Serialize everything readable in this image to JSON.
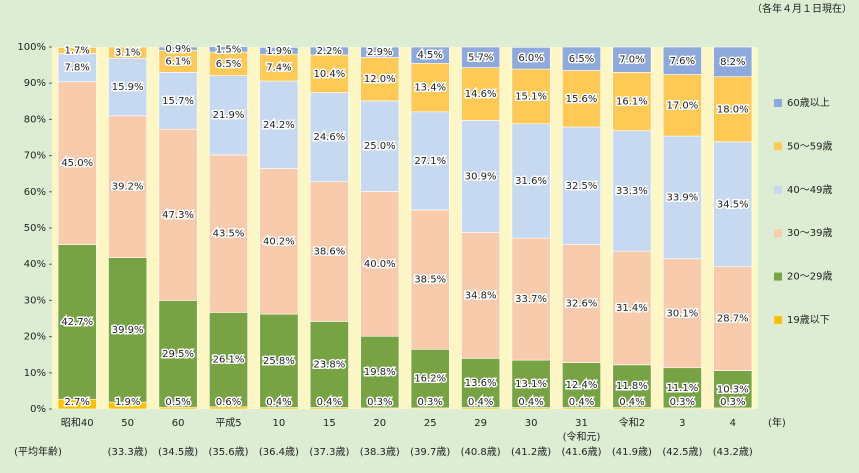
{
  "chart_data": {
    "type": "stacked_bar",
    "note": "（各年４月１日現在）",
    "categories": [
      "昭和40",
      "50",
      "60",
      "平成5",
      "10",
      "15",
      "20",
      "25",
      "29",
      "30",
      "31",
      "令和2",
      "3",
      "4"
    ],
    "x_sublabels": [
      null,
      null,
      null,
      null,
      null,
      null,
      null,
      null,
      null,
      null,
      "(令和元)",
      null,
      null,
      null
    ],
    "x_unit": "(年)",
    "average_age_label": "(平均年齢)",
    "average_ages": [
      null,
      "(33.3歳)",
      "(34.5歳)",
      "(35.6歳)",
      "(36.4歳)",
      "(37.3歳)",
      "(38.3歳)",
      "(39.7歳)",
      "(40.8歳)",
      "(41.2歳)",
      "(41.6歳)",
      "(41.9歳)",
      "(42.5歳)",
      "(43.2歳)"
    ],
    "series": [
      {
        "name": "19歳以下",
        "color": "#ffc000",
        "values": [
          2.7,
          1.9,
          0.5,
          0.6,
          0.4,
          0.4,
          0.3,
          0.3,
          0.4,
          0.4,
          0.4,
          0.4,
          0.3,
          0.3
        ],
        "value_labels": [
          "2.7%",
          "1.9%",
          "0.5%",
          "0.6%",
          "0.4%",
          "0.4%",
          "0.3%",
          "0.3%",
          "0.4%",
          "0.4%",
          "0.4%",
          "0.4%",
          "0.3%",
          "0.3%"
        ]
      },
      {
        "name": "20～29歳",
        "color": "#77a345",
        "values": [
          42.7,
          39.9,
          29.5,
          26.1,
          25.8,
          23.8,
          19.8,
          16.2,
          13.6,
          13.1,
          12.4,
          11.8,
          11.1,
          10.3
        ],
        "value_labels": [
          "42.7%",
          "39.9%",
          "29.5%",
          "26.1%",
          "25.8%",
          "23.8%",
          "19.8%",
          "16.2%",
          "13.6%",
          "13.1%",
          "12.4%",
          "11.8%",
          "11.1%",
          "10.3%"
        ]
      },
      {
        "name": "30～39歳",
        "color": "#f8cbad",
        "values": [
          45.0,
          39.2,
          47.3,
          43.5,
          40.2,
          38.6,
          40.0,
          38.5,
          34.8,
          33.7,
          32.6,
          31.4,
          30.1,
          28.7
        ],
        "value_labels": [
          "45.0%",
          "39.2%",
          "47.3%",
          "43.5%",
          "40.2%",
          "38.6%",
          "40.0%",
          "38.5%",
          "34.8%",
          "33.7%",
          "32.6%",
          "31.4%",
          "30.1%",
          "28.7%"
        ]
      },
      {
        "name": "40～49歳",
        "color": "#c6d9f0",
        "values": [
          7.8,
          15.9,
          15.7,
          21.9,
          24.2,
          24.6,
          25.0,
          27.1,
          30.9,
          31.6,
          32.5,
          33.3,
          33.9,
          34.5
        ],
        "value_labels": [
          "7.8%",
          "15.9%",
          "15.7%",
          "21.9%",
          "24.2%",
          "24.6%",
          "25.0%",
          "27.1%",
          "30.9%",
          "31.6%",
          "32.5%",
          "33.3%",
          "33.9%",
          "34.5%"
        ]
      },
      {
        "name": "50～59歳",
        "color": "#ffc955",
        "values": [
          1.7,
          3.1,
          6.1,
          6.5,
          7.4,
          10.4,
          12.0,
          13.4,
          14.6,
          15.1,
          15.6,
          16.1,
          17.0,
          18.0
        ],
        "value_labels": [
          "1.7%",
          "3.1%",
          "6.1%",
          "6.5%",
          "7.4%",
          "10.4%",
          "12.0%",
          "13.4%",
          "14.6%",
          "15.1%",
          "15.6%",
          "16.1%",
          "17.0%",
          "18.0%"
        ]
      },
      {
        "name": "60歳以上",
        "color": "#8ea9db",
        "values": [
          0,
          0,
          0.9,
          1.5,
          1.9,
          2.2,
          2.9,
          4.5,
          5.7,
          6.0,
          6.5,
          7.0,
          7.6,
          8.2
        ],
        "value_labels": [
          null,
          null,
          "0.9%",
          "1.5%",
          "1.9%",
          "2.2%",
          "2.9%",
          "4.5%",
          "5.7%",
          "6.0%",
          "6.5%",
          "7.0%",
          "7.6%",
          "8.2%"
        ]
      }
    ],
    "ylim": [
      0,
      100
    ],
    "yticks": [
      {
        "value": 0,
        "label": "0%"
      },
      {
        "value": 10,
        "label": "10%"
      },
      {
        "value": 20,
        "label": "20%"
      },
      {
        "value": 30,
        "label": "30%"
      },
      {
        "value": 40,
        "label": "40%"
      },
      {
        "value": 50,
        "label": "50%"
      },
      {
        "value": 60,
        "label": "60%"
      },
      {
        "value": 70,
        "label": "70%"
      },
      {
        "value": 80,
        "label": "80%"
      },
      {
        "value": 90,
        "label": "90%"
      },
      {
        "value": 100,
        "label": "100%"
      }
    ],
    "legend": "right"
  }
}
